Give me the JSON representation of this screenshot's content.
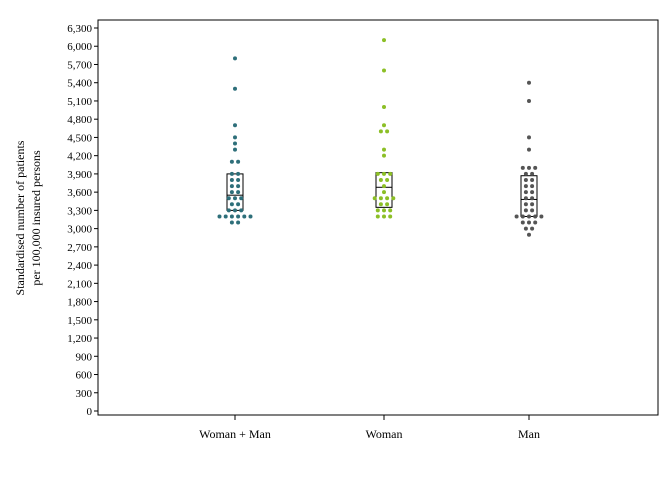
{
  "chart_data": {
    "type": "scatter",
    "subtype": "dot-box-plot",
    "ylabel_line1": "Standardised number of patients",
    "ylabel_line2": "per 100,000 insured persons",
    "ylim": [
      0,
      6300
    ],
    "yticks": [
      0,
      300,
      600,
      900,
      1200,
      1500,
      1800,
      2100,
      2400,
      2700,
      3000,
      3300,
      3600,
      3900,
      4200,
      4500,
      4800,
      5100,
      5400,
      5700,
      6000,
      6300
    ],
    "ytick_labels": [
      "0",
      "300",
      "600",
      "900",
      "1,200",
      "1,500",
      "1,800",
      "2,100",
      "2,400",
      "2,700",
      "3,000",
      "3,300",
      "3,600",
      "3,900",
      "4,200",
      "4,500",
      "4,800",
      "5,100",
      "5,400",
      "5,700",
      "6,000",
      "6,300"
    ],
    "grid": false,
    "categories": [
      "Woman + Man",
      "Woman",
      "Man"
    ],
    "series": [
      {
        "color": "#2e6f7a",
        "box": {
          "q1": 3300,
          "median": 3550,
          "q3": 3900
        },
        "points": [
          5800,
          5300,
          4700,
          4500,
          4400,
          4300,
          4100,
          4100,
          3900,
          3900,
          3800,
          3800,
          3700,
          3700,
          3600,
          3600,
          3500,
          3500,
          3500,
          3400,
          3400,
          3300,
          3300,
          3300,
          3200,
          3200,
          3200,
          3200,
          3200,
          3200,
          3100,
          3100
        ]
      },
      {
        "color": "#8cbf26",
        "box": {
          "q1": 3350,
          "median": 3680,
          "q3": 3920
        },
        "points": [
          6100,
          5600,
          5000,
          4700,
          4600,
          4600,
          4300,
          4200,
          3900,
          3900,
          3900,
          3800,
          3800,
          3700,
          3600,
          3500,
          3500,
          3500,
          3500,
          3400,
          3400,
          3300,
          3300,
          3300,
          3200,
          3200,
          3200
        ]
      },
      {
        "color": "#555555",
        "box": {
          "q1": 3200,
          "median": 3480,
          "q3": 3870
        },
        "points": [
          5400,
          5100,
          4500,
          4300,
          4000,
          4000,
          4000,
          3900,
          3900,
          3800,
          3800,
          3700,
          3700,
          3600,
          3600,
          3500,
          3500,
          3400,
          3400,
          3300,
          3300,
          3200,
          3200,
          3200,
          3200,
          3200,
          3100,
          3100,
          3100,
          3000,
          3000,
          2900
        ]
      }
    ]
  }
}
